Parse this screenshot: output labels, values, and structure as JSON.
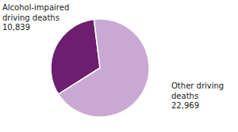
{
  "chart_data": {
    "type": "pie",
    "categories": [
      "Alcohol-impaired\ndriving deaths",
      "Other driving\ndeaths"
    ],
    "values": [
      10839,
      22969
    ],
    "value_labels": [
      "10,839",
      "22,969"
    ],
    "colors": [
      "#6B1F6E",
      "#C9A8D4"
    ],
    "data_labels": true
  }
}
